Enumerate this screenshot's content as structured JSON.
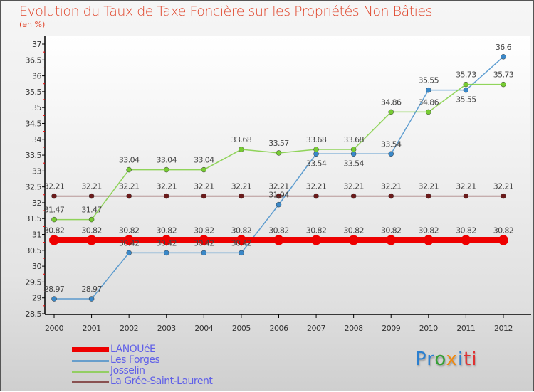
{
  "chart_data": {
    "type": "line",
    "title": "Evolution du Taux de Taxe Foncière sur les Propriétés Non Bâties",
    "ylabel": "(en %)",
    "xlabel": "",
    "x": [
      2000,
      2001,
      2002,
      2003,
      2004,
      2005,
      2006,
      2007,
      2008,
      2009,
      2010,
      2011,
      2012
    ],
    "ylim": [
      28.5,
      37
    ],
    "yticks": [
      28.5,
      29,
      29.5,
      30,
      30.5,
      31,
      31.5,
      32,
      32.5,
      33,
      33.5,
      34,
      34.5,
      35,
      35.5,
      36,
      36.5,
      37
    ],
    "legend_position": "bottom-left",
    "series": [
      {
        "name": "LANOUéE",
        "color": "#ee0000",
        "values": [
          30.82,
          30.82,
          30.82,
          30.82,
          30.82,
          30.82,
          30.82,
          30.82,
          30.82,
          30.82,
          30.82,
          30.82,
          30.82
        ]
      },
      {
        "name": "Les Forges",
        "color": "#3a88c8",
        "values": [
          28.97,
          28.97,
          30.42,
          30.42,
          30.42,
          30.42,
          31.94,
          33.54,
          33.54,
          33.54,
          35.55,
          35.55,
          36.6
        ]
      },
      {
        "name": "Josselin",
        "color": "#77cc33",
        "values": [
          31.47,
          31.47,
          33.04,
          33.04,
          33.04,
          33.68,
          33.57,
          33.68,
          33.68,
          34.86,
          34.86,
          35.73,
          35.73
        ]
      },
      {
        "name": "La Grée-Saint-Laurent",
        "color": "#6b1b1b",
        "values": [
          32.21,
          32.21,
          32.21,
          32.21,
          32.21,
          32.21,
          32.21,
          32.21,
          32.21,
          32.21,
          32.21,
          32.21,
          32.21
        ]
      }
    ]
  },
  "logo": {
    "text": "Proxiti",
    "parts": [
      "Pr",
      "o",
      "x",
      "i",
      "ti"
    ]
  }
}
